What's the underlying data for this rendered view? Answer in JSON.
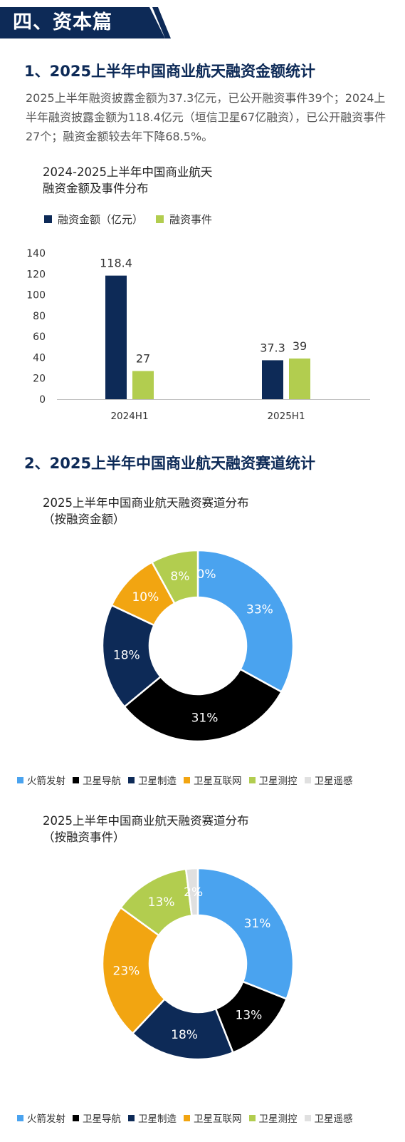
{
  "section": {
    "title": "四、资本篇"
  },
  "heading1": "1、2025上半年中国商业航天融资金额统计",
  "summary": "2025上半年融资披露金额为37.3亿元，已公开融资事件39个；2024上半年融资披露金额为118.4亿元（垣信卫星67亿融资），已公开融资事件27个；融资金额较去年下降68.5%。",
  "heading2": "2、2025上半年中国商业航天融资赛道统计",
  "colors": {
    "navy": "#0d2a57",
    "green": "#b2cd4f",
    "blue": "#4aa3ef",
    "black": "#000000",
    "orange": "#f2a511",
    "light_gray": "#e0e0e0"
  },
  "chart_data": [
    {
      "type": "bar",
      "title_lines": [
        "2024-2025上半年中国商业航天",
        "融资金额及事件分布"
      ],
      "categories": [
        "2024H1",
        "2025H1"
      ],
      "series": [
        {
          "name": "融资金额（亿元）",
          "values": [
            118.4,
            37.3
          ],
          "labels": [
            "118.4",
            "37.3"
          ],
          "color": "#0d2a57"
        },
        {
          "name": "融资事件",
          "values": [
            27,
            39
          ],
          "labels": [
            "27",
            "39"
          ],
          "color": "#b2cd4f"
        }
      ],
      "ylim": [
        0,
        140
      ],
      "yticks": [
        0,
        20,
        40,
        60,
        80,
        100,
        120,
        140
      ],
      "ytick_labels": [
        "0",
        "20",
        "40",
        "60",
        "80",
        "100",
        "120",
        "140"
      ],
      "grid": false,
      "legend": "top-left"
    },
    {
      "type": "pie",
      "title_lines": [
        "2025上半年中国商业航天融资赛道分布",
        "（按融资金额）"
      ],
      "categories": [
        "火箭发射",
        "卫星导航",
        "卫星制造",
        "卫星互联网",
        "卫星测控",
        "卫星遥感"
      ],
      "values": [
        33,
        31,
        18,
        10,
        8,
        0
      ],
      "labels": [
        "33%",
        "31%",
        "18%",
        "10%",
        "8%",
        "0%"
      ],
      "colors": [
        "#4aa3ef",
        "#000000",
        "#0d2a57",
        "#f2a511",
        "#b2cd4f",
        "#e0e0e0"
      ],
      "donut": true,
      "legend": "bottom"
    },
    {
      "type": "pie",
      "title_lines": [
        "2025上半年中国商业航天融资赛道分布",
        "（按融资事件）"
      ],
      "categories": [
        "火箭发射",
        "卫星导航",
        "卫星制造",
        "卫星互联网",
        "卫星测控",
        "卫星遥感"
      ],
      "values": [
        31,
        13,
        18,
        23,
        13,
        2
      ],
      "labels": [
        "31%",
        "13%",
        "18%",
        "23%",
        "13%",
        "2%"
      ],
      "colors": [
        "#4aa3ef",
        "#000000",
        "#0d2a57",
        "#f2a511",
        "#b2cd4f",
        "#e0e0e0"
      ],
      "donut": true,
      "legend": "bottom"
    }
  ]
}
